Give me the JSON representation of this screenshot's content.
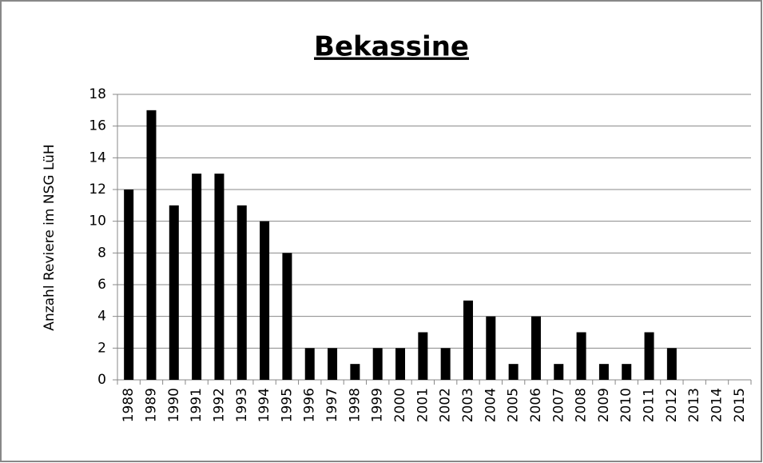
{
  "chart_data": {
    "type": "bar",
    "title": "Bekassine",
    "ylabel": "Anzahl Reviere im NSG LüH",
    "categories": [
      "1988",
      "1989",
      "1990",
      "1991",
      "1992",
      "1993",
      "1994",
      "1995",
      "1996",
      "1997",
      "1998",
      "1999",
      "2000",
      "2001",
      "2002",
      "2003",
      "2004",
      "2005",
      "2006",
      "2007",
      "2008",
      "2009",
      "2010",
      "2011",
      "2012",
      "2013",
      "2014",
      "2015"
    ],
    "values": [
      12,
      17,
      11,
      13,
      13,
      11,
      10,
      8,
      2,
      2,
      1,
      2,
      2,
      3,
      2,
      5,
      4,
      1,
      4,
      1,
      3,
      1,
      1,
      3,
      2,
      null,
      null,
      null
    ],
    "color": "#000000",
    "ylim": [
      0,
      18
    ],
    "yticks": [
      0,
      2,
      4,
      6,
      8,
      10,
      12,
      14,
      16,
      18
    ],
    "grid": true
  }
}
